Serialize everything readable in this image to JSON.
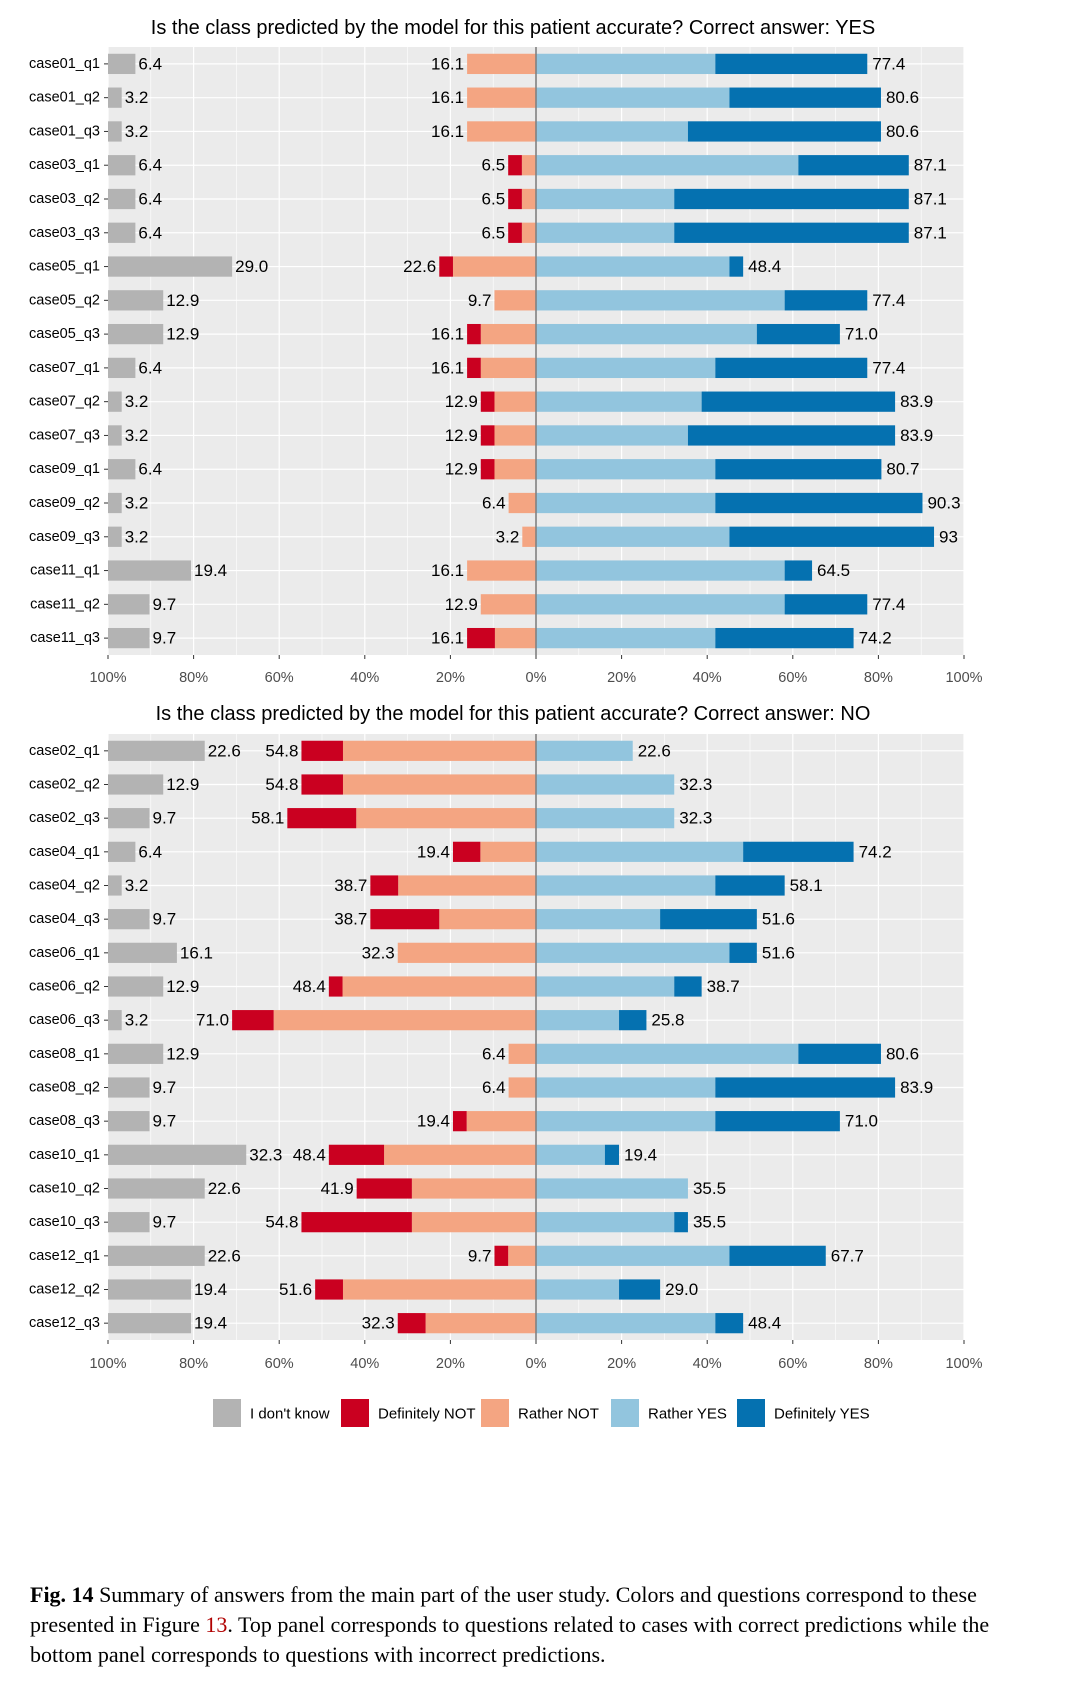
{
  "colors": {
    "i_dont_know": "#B3B3B3",
    "definitely_not": "#CA0020",
    "rather_not": "#F4A582",
    "rather_yes": "#92C5DE",
    "definitely_yes": "#0571B0",
    "panel_bg": "#EBEBEB",
    "grid": "#FFFFFF",
    "center_line": "#808080"
  },
  "legend": [
    {
      "key": "i_dont_know",
      "label": "I don't know"
    },
    {
      "key": "definitely_not",
      "label": "Definitely NOT"
    },
    {
      "key": "rather_not",
      "label": "Rather NOT"
    },
    {
      "key": "rather_yes",
      "label": "Rather YES"
    },
    {
      "key": "definitely_yes",
      "label": "Definitely YES"
    }
  ],
  "x_tick_labels": [
    "100%",
    "80%",
    "60%",
    "40%",
    "20%",
    "0%",
    "20%",
    "40%",
    "60%",
    "80%",
    "100%"
  ],
  "chart_data": [
    {
      "type": "bar",
      "orientation": "horizontal-diverging",
      "title": "Is the class predicted by the model for this patient accurate? Correct answer: YES",
      "xlim": [
        -100,
        100
      ],
      "categories": [
        "case01_q1",
        "case01_q2",
        "case01_q3",
        "case03_q1",
        "case03_q2",
        "case03_q3",
        "case05_q1",
        "case05_q2",
        "case05_q3",
        "case07_q1",
        "case07_q2",
        "case07_q3",
        "case09_q1",
        "case09_q2",
        "case09_q3",
        "case11_q1",
        "case11_q2",
        "case11_q3"
      ],
      "idk": [
        6.4,
        3.2,
        3.2,
        6.4,
        6.4,
        6.4,
        29.0,
        12.9,
        12.9,
        6.4,
        3.2,
        3.2,
        6.4,
        3.2,
        3.2,
        19.4,
        9.7,
        9.7
      ],
      "def_not": [
        0,
        0,
        0,
        3.2,
        3.2,
        3.2,
        3.2,
        0,
        3.2,
        3.2,
        3.2,
        3.2,
        3.2,
        0,
        0,
        0,
        0,
        6.5
      ],
      "rath_not": [
        16.1,
        16.1,
        16.1,
        3.3,
        3.3,
        3.3,
        19.4,
        9.7,
        12.9,
        12.9,
        9.7,
        9.7,
        9.7,
        6.4,
        3.2,
        16.1,
        12.9,
        9.6
      ],
      "rath_yes": [
        41.9,
        45.2,
        35.5,
        61.3,
        32.3,
        32.3,
        45.2,
        58.1,
        51.6,
        41.9,
        38.7,
        35.5,
        41.9,
        41.9,
        45.2,
        58.1,
        58.1,
        41.9
      ],
      "def_yes": [
        35.5,
        35.4,
        45.1,
        25.8,
        54.8,
        54.8,
        3.2,
        19.3,
        19.4,
        35.5,
        45.2,
        48.4,
        38.8,
        48.4,
        47.8,
        6.4,
        19.3,
        32.3
      ],
      "idk_labels": [
        "6.4",
        "3.2",
        "3.2",
        "6.4",
        "6.4",
        "6.4",
        "29.0",
        "12.9",
        "12.9",
        "6.4",
        "3.2",
        "3.2",
        "6.4",
        "3.2",
        "3.2",
        "19.4",
        "9.7",
        "9.7"
      ],
      "left_labels": [
        "16.1",
        "16.1",
        "16.1",
        "6.5",
        "6.5",
        "6.5",
        "22.6",
        "9.7",
        "16.1",
        "16.1",
        "12.9",
        "12.9",
        "12.9",
        "6.4",
        "3.2",
        "16.1",
        "12.9",
        "16.1"
      ],
      "right_labels": [
        "77.4",
        "80.6",
        "80.6",
        "87.1",
        "87.1",
        "87.1",
        "48.4",
        "77.4",
        "71.0",
        "77.4",
        "83.9",
        "83.9",
        "80.7",
        "90.3",
        "93",
        "64.5",
        "77.4",
        "74.2"
      ]
    },
    {
      "type": "bar",
      "orientation": "horizontal-diverging",
      "title": "Is the class predicted by the model for this patient accurate? Correct answer: NO",
      "xlim": [
        -100,
        100
      ],
      "categories": [
        "case02_q1",
        "case02_q2",
        "case02_q3",
        "case04_q1",
        "case04_q2",
        "case04_q3",
        "case06_q1",
        "case06_q2",
        "case06_q3",
        "case08_q1",
        "case08_q2",
        "case08_q3",
        "case10_q1",
        "case10_q2",
        "case10_q3",
        "case12_q1",
        "case12_q2",
        "case12_q3"
      ],
      "idk": [
        22.6,
        12.9,
        9.7,
        6.4,
        3.2,
        9.7,
        16.1,
        12.9,
        3.2,
        12.9,
        9.7,
        9.7,
        32.3,
        22.6,
        9.7,
        22.6,
        19.4,
        19.4
      ],
      "def_not": [
        9.7,
        9.7,
        16.1,
        6.4,
        6.5,
        16.1,
        0,
        3.2,
        9.7,
        0,
        0,
        3.2,
        12.9,
        12.9,
        25.8,
        3.2,
        6.5,
        6.5
      ],
      "rath_not": [
        45.1,
        45.1,
        42.0,
        13.0,
        32.2,
        22.6,
        32.3,
        45.2,
        61.3,
        6.4,
        6.4,
        16.2,
        35.5,
        29.0,
        29.0,
        6.5,
        45.1,
        25.8
      ],
      "rath_yes": [
        22.6,
        32.3,
        32.3,
        48.4,
        41.9,
        29.0,
        45.2,
        32.3,
        19.4,
        61.3,
        41.9,
        41.9,
        16.1,
        35.5,
        32.3,
        45.2,
        19.4,
        41.9
      ],
      "def_yes": [
        0,
        0,
        0,
        25.8,
        16.2,
        22.6,
        6.4,
        6.4,
        6.4,
        19.3,
        42.0,
        29.1,
        3.3,
        0,
        3.2,
        22.5,
        9.6,
        6.5
      ],
      "idk_labels": [
        "22.6",
        "12.9",
        "9.7",
        "6.4",
        "3.2",
        "9.7",
        "16.1",
        "12.9",
        "3.2",
        "12.9",
        "9.7",
        "9.7",
        "32.3",
        "22.6",
        "9.7",
        "22.6",
        "19.4",
        "19.4"
      ],
      "left_labels": [
        "54.8",
        "54.8",
        "58.1",
        "19.4",
        "38.7",
        "38.7",
        "32.3",
        "48.4",
        "71.0",
        "6.4",
        "6.4",
        "19.4",
        "48.4",
        "41.9",
        "54.8",
        "9.7",
        "51.6",
        "32.3"
      ],
      "right_labels": [
        "22.6",
        "32.3",
        "32.3",
        "74.2",
        "58.1",
        "51.6",
        "51.6",
        "38.7",
        "25.8",
        "80.6",
        "83.9",
        "71.0",
        "19.4",
        "35.5",
        "35.5",
        "67.7",
        "29.0",
        "48.4"
      ]
    }
  ],
  "caption": {
    "label": "Fig. 14",
    "text_before_ref": " Summary of answers from the main part of the user study. Colors and questions correspond to these presented in Figure ",
    "ref": "13",
    "text_after_ref": ". Top panel corresponds to questions related to cases with correct predictions while the bottom panel corresponds to questions with incorrect predictions."
  }
}
